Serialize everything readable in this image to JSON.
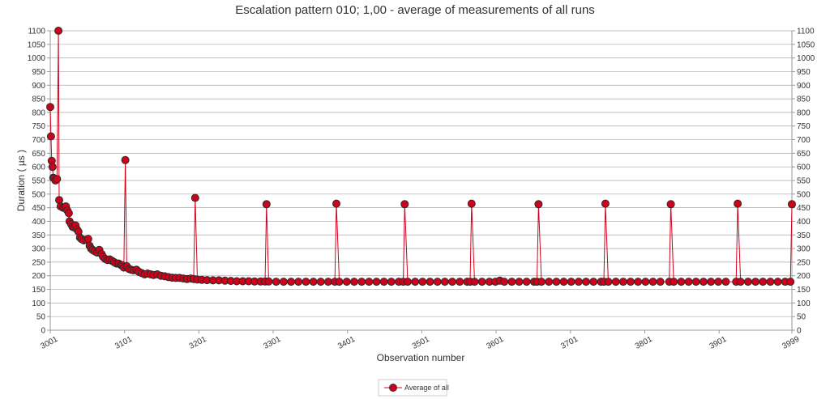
{
  "chart_data": {
    "type": "line",
    "title": "Escalation pattern 010; 1,00 - average of measurements of all runs",
    "xlabel": "Observation number",
    "ylabel": "Duration ( µs )",
    "xlim": [
      3001,
      3999
    ],
    "ylim": [
      0,
      1100
    ],
    "x_ticks": [
      3001,
      3101,
      3201,
      3301,
      3401,
      3501,
      3601,
      3701,
      3801,
      3901,
      3999
    ],
    "y_ticks": [
      0,
      50,
      100,
      150,
      200,
      250,
      300,
      350,
      400,
      450,
      500,
      550,
      600,
      650,
      700,
      750,
      800,
      850,
      900,
      950,
      1000,
      1050,
      1100
    ],
    "grid": true,
    "legend": "bottom-center",
    "series": [
      {
        "name": "Average of all",
        "color": "#d0021b",
        "marker": "circle",
        "points": [
          [
            3001,
            820
          ],
          [
            3002,
            712
          ],
          [
            3003,
            622
          ],
          [
            3004,
            600
          ],
          [
            3005,
            560
          ],
          [
            3006,
            558
          ],
          [
            3008,
            550
          ],
          [
            3010,
            555
          ],
          [
            3012,
            1100
          ],
          [
            3013,
            478
          ],
          [
            3015,
            455
          ],
          [
            3018,
            450
          ],
          [
            3020,
            452
          ],
          [
            3022,
            455
          ],
          [
            3024,
            440
          ],
          [
            3026,
            430
          ],
          [
            3027,
            400
          ],
          [
            3029,
            390
          ],
          [
            3031,
            380
          ],
          [
            3033,
            378
          ],
          [
            3035,
            385
          ],
          [
            3037,
            370
          ],
          [
            3039,
            362
          ],
          [
            3041,
            340
          ],
          [
            3043,
            335
          ],
          [
            3046,
            330
          ],
          [
            3049,
            332
          ],
          [
            3052,
            335
          ],
          [
            3054,
            310
          ],
          [
            3056,
            300
          ],
          [
            3058,
            295
          ],
          [
            3061,
            290
          ],
          [
            3064,
            285
          ],
          [
            3067,
            295
          ],
          [
            3070,
            280
          ],
          [
            3072,
            270
          ],
          [
            3075,
            262
          ],
          [
            3078,
            258
          ],
          [
            3081,
            260
          ],
          [
            3084,
            255
          ],
          [
            3087,
            250
          ],
          [
            3090,
            245
          ],
          [
            3093,
            245
          ],
          [
            3096,
            240
          ],
          [
            3098,
            238
          ],
          [
            3100,
            230
          ],
          [
            3102,
            625
          ],
          [
            3104,
            235
          ],
          [
            3107,
            225
          ],
          [
            3110,
            222
          ],
          [
            3113,
            220
          ],
          [
            3117,
            222
          ],
          [
            3120,
            215
          ],
          [
            3124,
            210
          ],
          [
            3128,
            205
          ],
          [
            3132,
            208
          ],
          [
            3136,
            205
          ],
          [
            3140,
            203
          ],
          [
            3145,
            205
          ],
          [
            3150,
            200
          ],
          [
            3155,
            198
          ],
          [
            3160,
            195
          ],
          [
            3165,
            193
          ],
          [
            3170,
            192
          ],
          [
            3175,
            192
          ],
          [
            3180,
            190
          ],
          [
            3185,
            188
          ],
          [
            3190,
            190
          ],
          [
            3194,
            188
          ],
          [
            3196,
            486
          ],
          [
            3199,
            186
          ],
          [
            3205,
            185
          ],
          [
            3212,
            184
          ],
          [
            3220,
            183
          ],
          [
            3228,
            183
          ],
          [
            3236,
            182
          ],
          [
            3244,
            181
          ],
          [
            3252,
            180
          ],
          [
            3260,
            180
          ],
          [
            3268,
            180
          ],
          [
            3276,
            179
          ],
          [
            3284,
            179
          ],
          [
            3290,
            179
          ],
          [
            3292,
            463
          ],
          [
            3295,
            179
          ],
          [
            3305,
            178
          ],
          [
            3315,
            178
          ],
          [
            3325,
            178
          ],
          [
            3335,
            178
          ],
          [
            3345,
            178
          ],
          [
            3355,
            178
          ],
          [
            3365,
            178
          ],
          [
            3375,
            178
          ],
          [
            3384,
            178
          ],
          [
            3386,
            465
          ],
          [
            3390,
            178
          ],
          [
            3400,
            178
          ],
          [
            3410,
            178
          ],
          [
            3420,
            178
          ],
          [
            3430,
            178
          ],
          [
            3440,
            178
          ],
          [
            3450,
            178
          ],
          [
            3460,
            178
          ],
          [
            3470,
            178
          ],
          [
            3476,
            178
          ],
          [
            3478,
            463
          ],
          [
            3482,
            178
          ],
          [
            3492,
            178
          ],
          [
            3502,
            178
          ],
          [
            3512,
            178
          ],
          [
            3522,
            178
          ],
          [
            3532,
            178
          ],
          [
            3542,
            178
          ],
          [
            3552,
            178
          ],
          [
            3562,
            178
          ],
          [
            3566,
            178
          ],
          [
            3568,
            465
          ],
          [
            3572,
            178
          ],
          [
            3582,
            178
          ],
          [
            3592,
            178
          ],
          [
            3600,
            178
          ],
          [
            3606,
            182
          ],
          [
            3612,
            178
          ],
          [
            3622,
            178
          ],
          [
            3632,
            178
          ],
          [
            3642,
            178
          ],
          [
            3652,
            178
          ],
          [
            3656,
            178
          ],
          [
            3658,
            463
          ],
          [
            3662,
            178
          ],
          [
            3672,
            178
          ],
          [
            3682,
            178
          ],
          [
            3692,
            178
          ],
          [
            3702,
            178
          ],
          [
            3712,
            178
          ],
          [
            3722,
            178
          ],
          [
            3732,
            178
          ],
          [
            3742,
            178
          ],
          [
            3746,
            178
          ],
          [
            3748,
            465
          ],
          [
            3752,
            178
          ],
          [
            3762,
            178
          ],
          [
            3772,
            178
          ],
          [
            3782,
            178
          ],
          [
            3792,
            178
          ],
          [
            3802,
            178
          ],
          [
            3812,
            178
          ],
          [
            3822,
            178
          ],
          [
            3834,
            178
          ],
          [
            3836,
            463
          ],
          [
            3840,
            178
          ],
          [
            3850,
            178
          ],
          [
            3860,
            178
          ],
          [
            3870,
            178
          ],
          [
            3880,
            178
          ],
          [
            3890,
            178
          ],
          [
            3900,
            178
          ],
          [
            3910,
            178
          ],
          [
            3924,
            178
          ],
          [
            3926,
            465
          ],
          [
            3930,
            178
          ],
          [
            3940,
            178
          ],
          [
            3950,
            178
          ],
          [
            3960,
            178
          ],
          [
            3970,
            178
          ],
          [
            3980,
            178
          ],
          [
            3990,
            178
          ],
          [
            3997,
            178
          ],
          [
            3999,
            463
          ]
        ]
      }
    ]
  }
}
